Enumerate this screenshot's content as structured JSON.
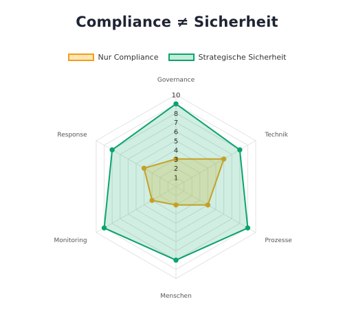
{
  "chart_data": {
    "type": "radar",
    "title": "Compliance ≠ Sicherheit",
    "categories": [
      "Governance",
      "Technik",
      "Prozesse",
      "Menschen",
      "Monitoring",
      "Response"
    ],
    "r_ticks": [
      "1",
      "2",
      "3",
      "4",
      "5",
      "6",
      "7",
      "8",
      "10"
    ],
    "r_range": [
      0,
      10
    ],
    "grid": true,
    "legend_position": "top",
    "series": [
      {
        "name": "Nur Compliance",
        "values": [
          3,
          6,
          4,
          2,
          3,
          4
        ],
        "line_color": "#f29e16",
        "fill_color": "rgba(242,192,60,0.30)",
        "swatch_fill": "#fde6b5"
      },
      {
        "name": "Strategische Sicherheit",
        "values": [
          9,
          8,
          9,
          8,
          9,
          8
        ],
        "line_color": "#0aa36c",
        "fill_color": "rgba(18,170,110,0.20)",
        "swatch_fill": "#c4ecd9"
      }
    ]
  }
}
